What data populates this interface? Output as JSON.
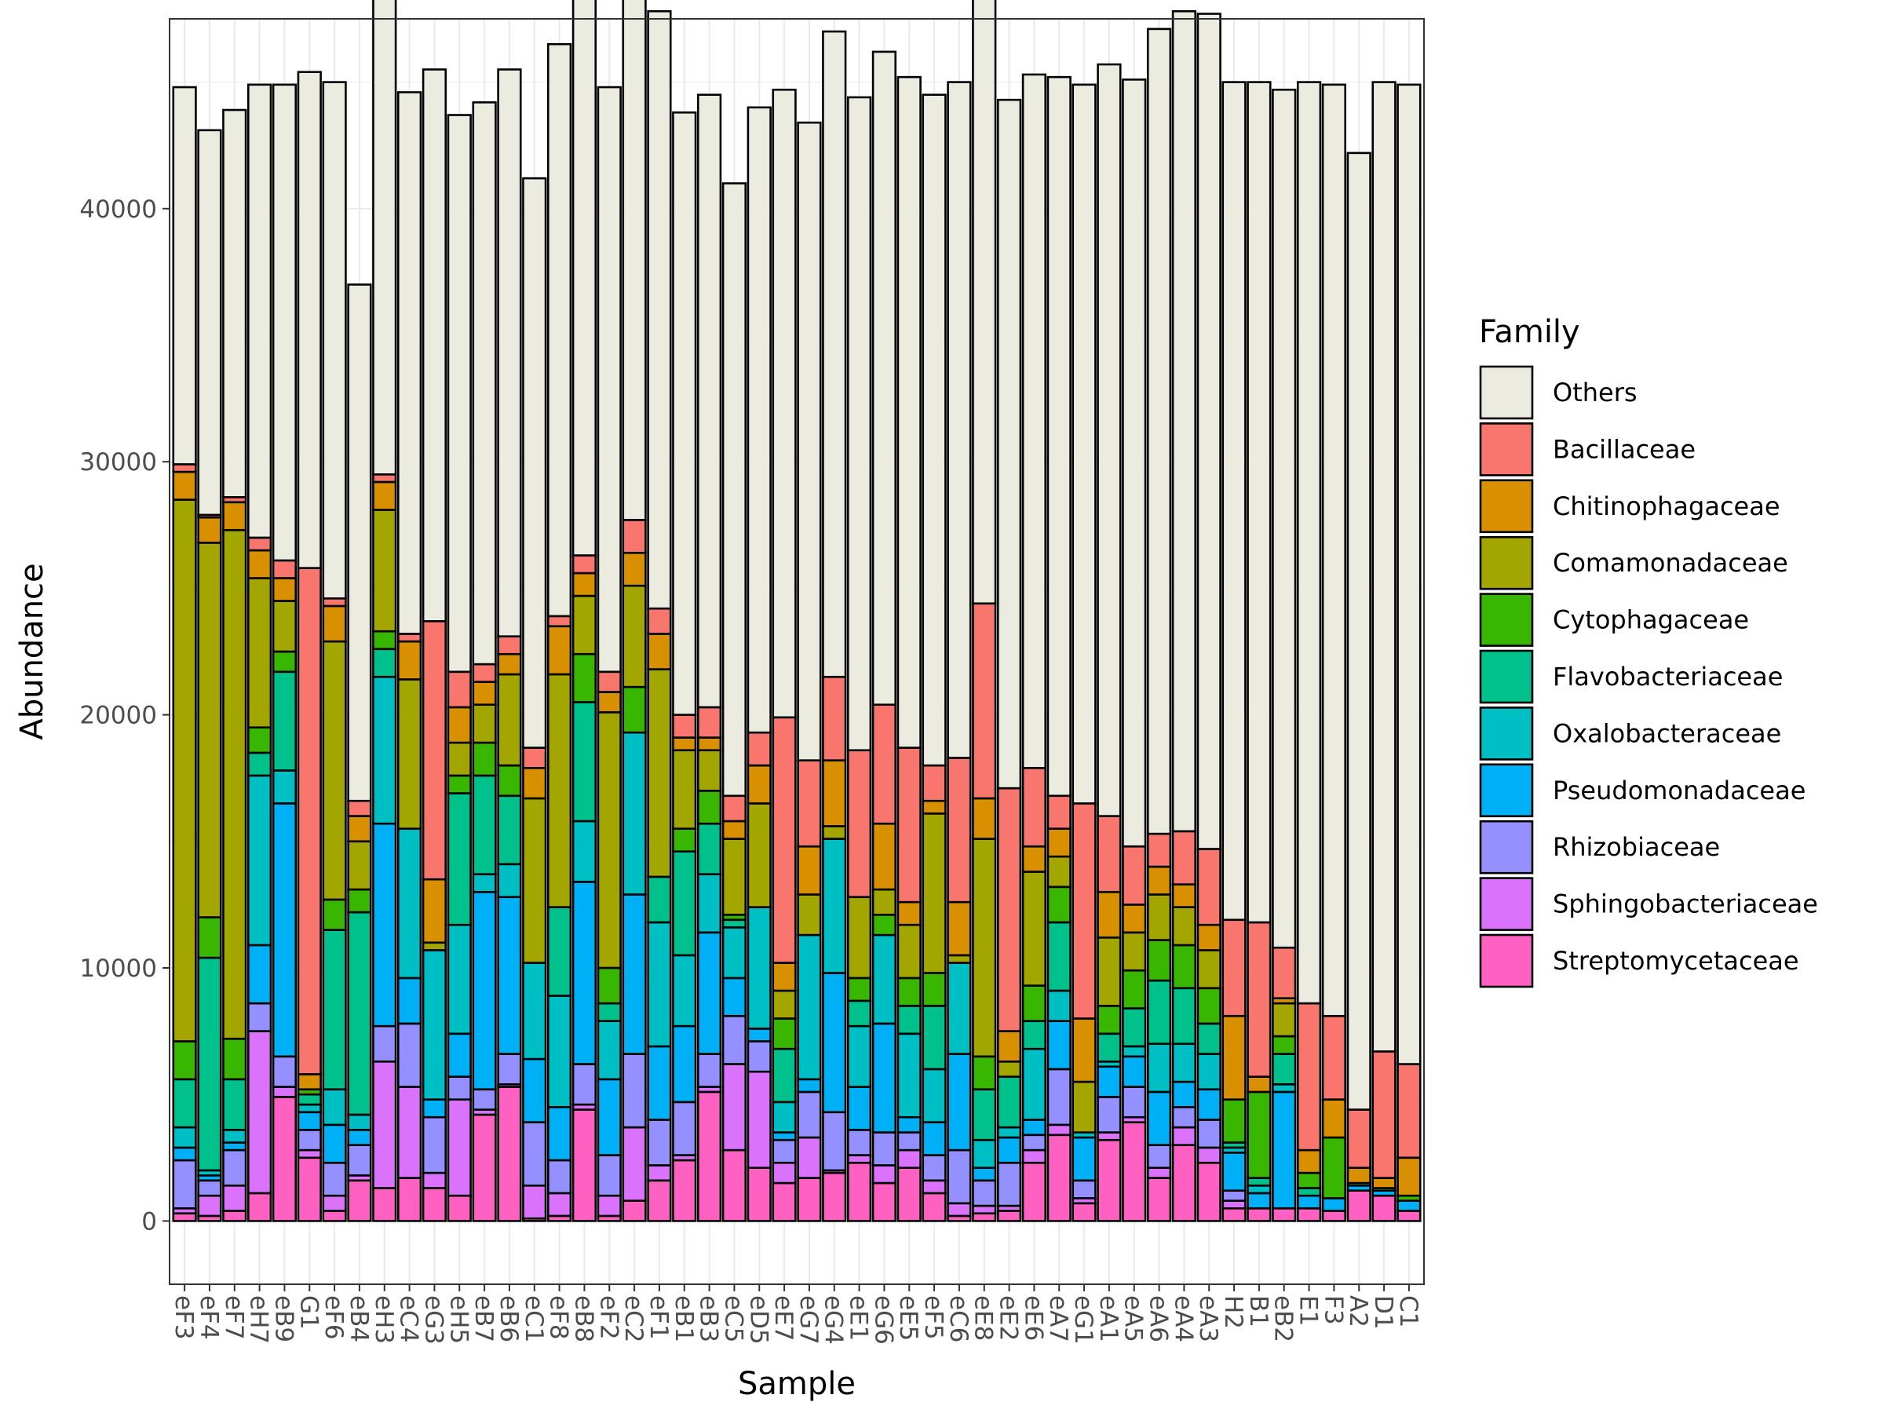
{
  "chart_data": {
    "type": "bar",
    "stacked": true,
    "xlabel": "Sample",
    "ylabel": "Abundance",
    "ylim": [
      -2500,
      47500
    ],
    "yticks": [
      0,
      10000,
      20000,
      30000,
      40000
    ],
    "total": 45000,
    "grid": true,
    "legend_position": "right",
    "legend_title": "Family",
    "categories": [
      "eF3",
      "eF4",
      "eF7",
      "eH7",
      "eB9",
      "G1",
      "eF6",
      "eB4",
      "eH3",
      "eC4",
      "eG3",
      "eH5",
      "eB7",
      "eB6",
      "eC1",
      "eF8",
      "eB8",
      "eF2",
      "eC2",
      "eF1",
      "eB1",
      "eB3",
      "eC5",
      "eD5",
      "eE7",
      "eG7",
      "eG4",
      "eE1",
      "eG6",
      "eE5",
      "eF5",
      "eC6",
      "eE8",
      "eE2",
      "eE6",
      "eA7",
      "eG1",
      "eA1",
      "eA5",
      "eA6",
      "eA4",
      "eA3",
      "H2",
      "B1",
      "eB2",
      "E1",
      "F3",
      "A2",
      "D1",
      "C1"
    ],
    "series": [
      {
        "name": "Streptomycetaceae",
        "color": "#FF61C3",
        "values": [
          300,
          200,
          400,
          1100,
          4900,
          2500,
          400,
          1600,
          1300,
          1700,
          1300,
          1000,
          4200,
          5300,
          100,
          200,
          4400,
          200,
          800,
          1600,
          2400,
          5100,
          2800,
          2100,
          1500,
          1700,
          1900,
          2300,
          1500,
          2100,
          1100,
          200,
          300,
          400,
          2300,
          3400,
          700,
          3200,
          3900,
          1700,
          3000,
          2300,
          500,
          500,
          500,
          500,
          400,
          1200,
          1000,
          400
        ]
      },
      {
        "name": "Sphingobacteriaceae",
        "color": "#DB72FB",
        "values": [
          200,
          800,
          1000,
          6400,
          400,
          300,
          600,
          200,
          5000,
          3600,
          600,
          3800,
          200,
          100,
          1300,
          900,
          200,
          800,
          2900,
          600,
          200,
          200,
          3400,
          3800,
          800,
          1600,
          100,
          300,
          700,
          700,
          500,
          500,
          300,
          200,
          500,
          400,
          200,
          300,
          200,
          400,
          700,
          600,
          300,
          0,
          0,
          0,
          0,
          0,
          0,
          0
        ]
      },
      {
        "name": "Rhizobiaceae",
        "color": "#9590FF",
        "values": [
          1900,
          600,
          1400,
          1100,
          1200,
          800,
          1300,
          1200,
          1400,
          2500,
          2200,
          900,
          800,
          1200,
          2500,
          1300,
          1600,
          1600,
          2900,
          1800,
          2100,
          1300,
          1900,
          1200,
          900,
          1800,
          2300,
          1000,
          1300,
          700,
          1000,
          2100,
          1000,
          1700,
          600,
          2200,
          700,
          1400,
          1200,
          900,
          800,
          1100,
          400,
          0,
          0,
          0,
          0,
          0,
          0,
          0
        ]
      },
      {
        "name": "Pseudomonadaceae",
        "color": "#00B0F6",
        "values": [
          500,
          200,
          300,
          2300,
          10000,
          700,
          1500,
          600,
          8000,
          1800,
          700,
          1700,
          7800,
          6200,
          2500,
          2100,
          7200,
          3000,
          6300,
          2900,
          3000,
          4800,
          1500,
          500,
          300,
          500,
          5500,
          1700,
          4300,
          600,
          1300,
          3800,
          500,
          1000,
          600,
          1900,
          1700,
          1200,
          1200,
          2100,
          1000,
          1200,
          1500,
          600,
          4600,
          500,
          500,
          200,
          200,
          400
        ]
      },
      {
        "name": "Oxalobacteraceae",
        "color": "#00BFC4",
        "values": [
          800,
          200,
          500,
          6700,
          1300,
          300,
          1400,
          600,
          5800,
          5900,
          5900,
          4300,
          700,
          1300,
          3800,
          4400,
          2400,
          2300,
          6400,
          4900,
          2800,
          2300,
          2000,
          4800,
          1200,
          5700,
          5300,
          2400,
          3500,
          3300,
          2100,
          3600,
          1100,
          400,
          2800,
          1200,
          200,
          200,
          400,
          1900,
          1500,
          1400,
          200,
          300,
          300,
          0,
          0,
          0,
          0,
          0
        ]
      },
      {
        "name": "Flavobacteriaceae",
        "color": "#00C08B",
        "values": [
          1900,
          8400,
          2000,
          900,
          3900,
          400,
          6300,
          8000,
          1100,
          0,
          0,
          5200,
          3900,
          2700,
          0,
          3500,
          4700,
          700,
          0,
          1800,
          4100,
          2000,
          300,
          0,
          2100,
          0,
          0,
          1000,
          0,
          1100,
          2500,
          0,
          2000,
          2000,
          1100,
          2700,
          0,
          1100,
          1500,
          2500,
          2200,
          1200,
          200,
          300,
          1200,
          300,
          0,
          100,
          100,
          0
        ]
      },
      {
        "name": "Cytophagaceae",
        "color": "#39B600",
        "values": [
          1500,
          1600,
          1600,
          1000,
          800,
          200,
          1200,
          900,
          700,
          0,
          0,
          700,
          1300,
          1200,
          0,
          0,
          1900,
          1400,
          1800,
          0,
          900,
          1300,
          200,
          0,
          1200,
          0,
          0,
          900,
          800,
          1100,
          1300,
          0,
          1300,
          0,
          1400,
          1400,
          0,
          1100,
          1500,
          1600,
          1700,
          1400,
          1700,
          3400,
          700,
          600,
          2400,
          0,
          0,
          200
        ]
      },
      {
        "name": "Comamonadaceae",
        "color": "#A3A500",
        "values": [
          21400,
          14800,
          20100,
          5900,
          2000,
          0,
          10200,
          1900,
          4800,
          5900,
          300,
          1300,
          1500,
          3600,
          6500,
          9200,
          2300,
          10100,
          4000,
          8200,
          3100,
          1600,
          3000,
          4100,
          1100,
          1600,
          500,
          3200,
          1000,
          2100,
          6300,
          300,
          8600,
          600,
          4500,
          1200,
          2000,
          2700,
          1500,
          1800,
          1500,
          1500,
          0,
          0,
          1300,
          0,
          0,
          0,
          0,
          0
        ]
      },
      {
        "name": "Chitinophagaceae",
        "color": "#D89000",
        "values": [
          1100,
          1000,
          1100,
          1100,
          900,
          600,
          1400,
          1000,
          1100,
          1500,
          2500,
          1400,
          900,
          800,
          1200,
          1900,
          900,
          800,
          1300,
          1400,
          500,
          500,
          700,
          1500,
          1100,
          1900,
          2600,
          0,
          2600,
          900,
          500,
          2100,
          1600,
          1200,
          1000,
          1100,
          2500,
          1800,
          1100,
          1100,
          900,
          1000,
          3300,
          600,
          200,
          900,
          1500,
          600,
          400,
          1500
        ]
      },
      {
        "name": "Bacillaceae",
        "color": "#F8766D",
        "values": [
          300,
          100,
          200,
          500,
          700,
          20000,
          300,
          600,
          300,
          300,
          10200,
          1400,
          700,
          700,
          800,
          400,
          700,
          800,
          1300,
          1000,
          900,
          1200,
          1000,
          1300,
          9700,
          3400,
          3300,
          5800,
          4700,
          6100,
          1400,
          5700,
          7700,
          9600,
          3100,
          1300,
          8500,
          3000,
          2300,
          1300,
          2100,
          3000,
          3800,
          6100,
          2000,
          5800,
          3300,
          2300,
          5000,
          3700
        ]
      },
      {
        "name": "Others",
        "color": "#EBEBE0",
        "values": [
          14900,
          15200,
          15300,
          17900,
          18800,
          19600,
          20400,
          20400,
          21000,
          21400,
          21800,
          22000,
          22200,
          22400,
          22500,
          22600,
          22600,
          23100,
          23600,
          23600,
          23800,
          24200,
          24200,
          24700,
          24800,
          25200,
          25500,
          25800,
          25800,
          26500,
          26500,
          26700,
          27200,
          27200,
          27400,
          28400,
          28400,
          29700,
          30300,
          31800,
          32400,
          33000,
          33100,
          33200,
          33900,
          36400,
          36800,
          37800,
          38300,
          38700
        ]
      }
    ],
    "legend_order": [
      "Others",
      "Bacillaceae",
      "Chitinophagaceae",
      "Comamonadaceae",
      "Cytophagaceae",
      "Flavobacteriaceae",
      "Oxalobacteraceae",
      "Pseudomonadaceae",
      "Rhizobiaceae",
      "Sphingobacteriaceae",
      "Streptomycetaceae"
    ]
  }
}
